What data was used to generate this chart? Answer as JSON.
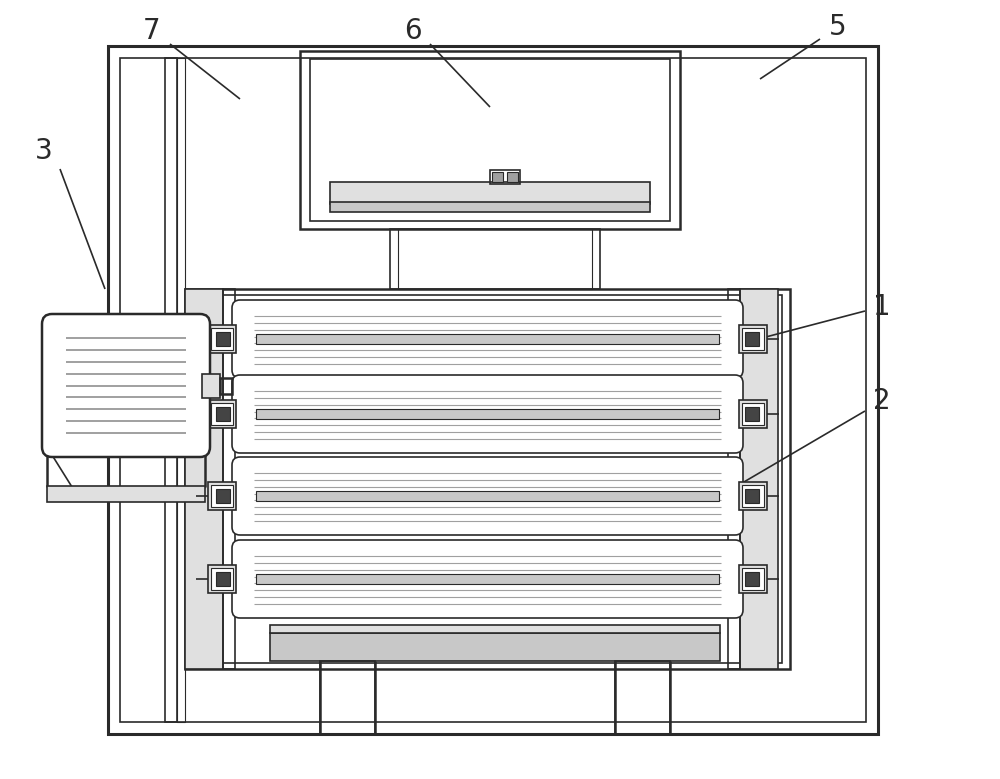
{
  "bg": "#ffffff",
  "lc": "#2a2a2a",
  "gray1": "#c8c8c8",
  "gray2": "#e0e0e0",
  "gray3": "#a0a0a0",
  "lw_thin": 0.8,
  "lw_med": 1.2,
  "lw_thick": 1.8,
  "lw_outer": 2.2,
  "label_fs": 20,
  "note_fs": 14
}
